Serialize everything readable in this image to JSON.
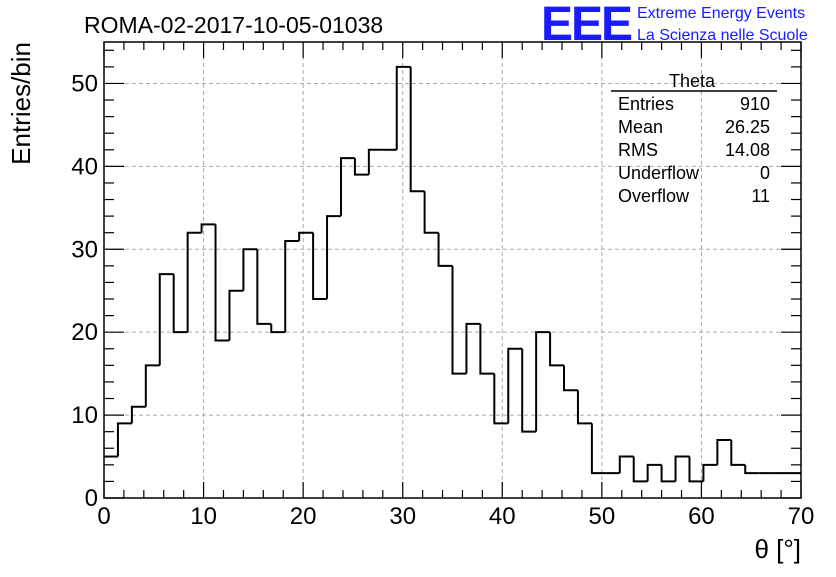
{
  "chart_data": {
    "type": "bar",
    "title": "ROMA-02-2017-10-05-01038",
    "xlabel": "θ [°]",
    "ylabel": "Entries/bin",
    "xlim": [
      0,
      70
    ],
    "ylim": [
      0,
      55
    ],
    "x_ticks": [
      0,
      10,
      20,
      30,
      40,
      50,
      60,
      70
    ],
    "y_ticks": [
      0,
      10,
      20,
      30,
      40,
      50
    ],
    "grid": true,
    "bin_width": 1.4,
    "bin_edges_start": 0,
    "values": [
      5,
      9,
      11,
      16,
      27,
      20,
      32,
      33,
      19,
      25,
      30,
      21,
      20,
      31,
      32,
      24,
      34,
      41,
      39,
      42,
      42,
      52,
      37,
      32,
      28,
      15,
      21,
      15,
      9,
      18,
      8,
      20,
      16,
      13,
      9,
      3,
      3,
      5,
      2,
      4,
      2,
      5,
      2,
      4,
      7,
      4,
      3,
      3,
      3,
      3
    ],
    "stats_box": {
      "name": "Theta",
      "rows": [
        {
          "label": "Entries",
          "value": "910"
        },
        {
          "label": "Mean",
          "value": "26.25"
        },
        {
          "label": "RMS",
          "value": "14.08"
        },
        {
          "label": "Underflow",
          "value": "0"
        },
        {
          "label": "Overflow",
          "value": "11"
        }
      ]
    }
  },
  "logo": {
    "letters": "EEE",
    "line1": "Extreme Energy Events",
    "line2": "La Scienza nelle Scuole",
    "color": "#1a1aff"
  }
}
